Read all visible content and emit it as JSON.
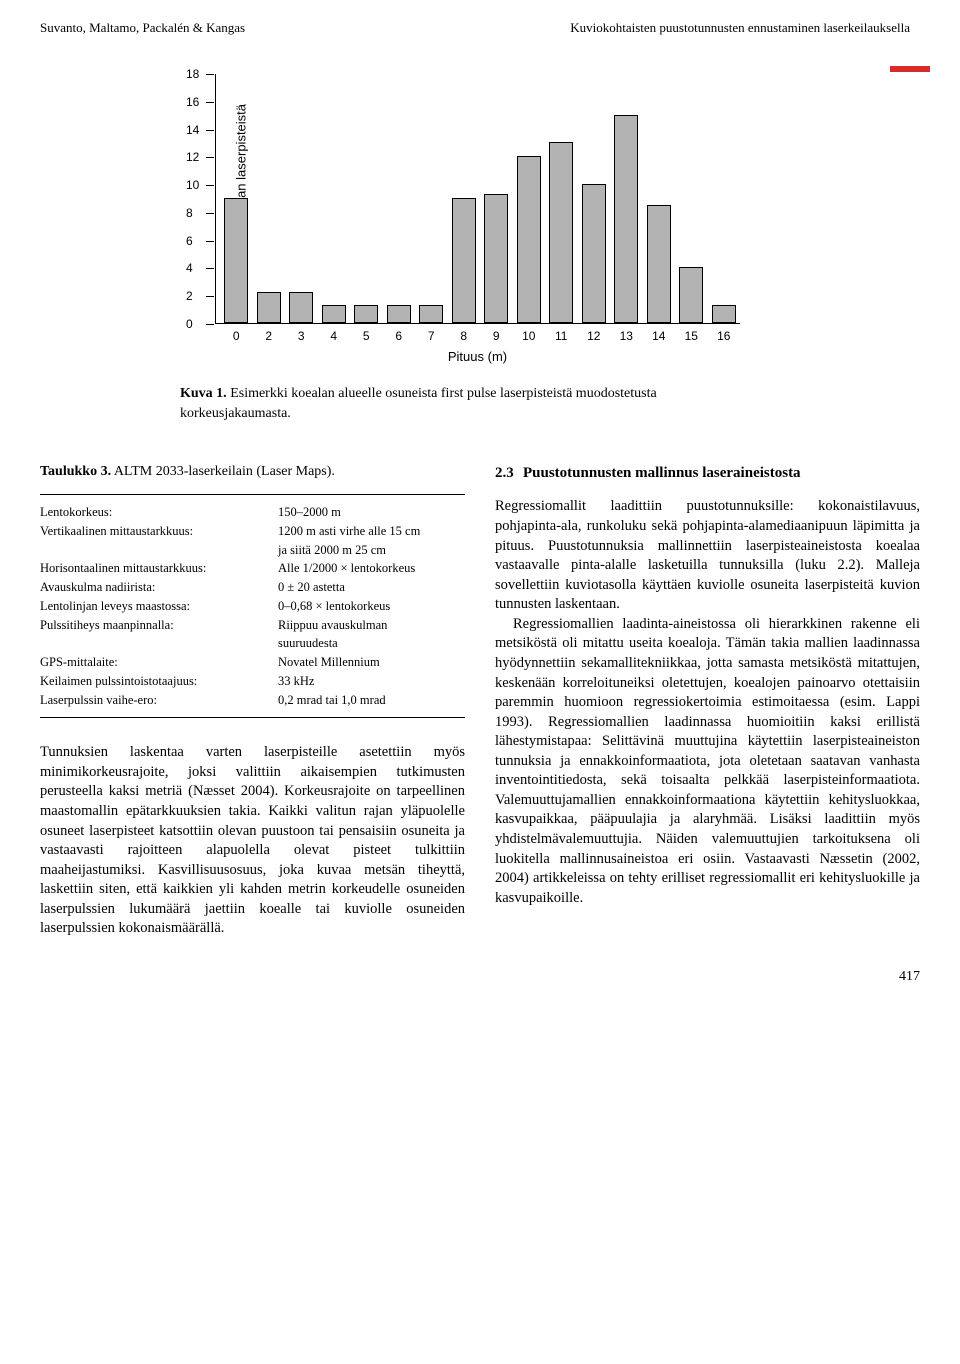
{
  "header": {
    "left": "Suvanto, Maltamo, Packalén & Kangas",
    "right": "Kuviokohtaisten puustotunnusten ennustaminen laserkeilauksella"
  },
  "chart": {
    "type": "bar",
    "ylabel": "Osuus (%) koealan laserpisteistä",
    "xlabel": "Pituus (m)",
    "yticks": [
      0,
      2,
      4,
      6,
      8,
      10,
      12,
      14,
      16,
      18
    ],
    "ylim": [
      0,
      18
    ],
    "xlabels": [
      "0",
      "2",
      "3",
      "4",
      "5",
      "6",
      "7",
      "8",
      "9",
      "10",
      "11",
      "12",
      "13",
      "14",
      "15",
      "16"
    ],
    "values": [
      9,
      2.2,
      2.2,
      1.3,
      1.3,
      1.3,
      1.3,
      9,
      9.3,
      12,
      13,
      10,
      15,
      8.5,
      4,
      1.3
    ],
    "bar_color": "#b3b3b3",
    "border_color": "#000000"
  },
  "caption": {
    "label": "Kuva 1.",
    "text": " Esimerkki koealan alueelle osuneista first pulse laserpisteistä muodostetusta korkeusjakaumasta."
  },
  "table": {
    "title": "Taulukko 3.",
    "title_rest": " ALTM 2033-laserkeilain (Laser Maps).",
    "rows": [
      {
        "k": "Lentokorkeus:",
        "v": "150–2000 m"
      },
      {
        "k": "Vertikaalinen mittaustarkkuus:",
        "v": "1200 m asti virhe alle 15 cm"
      },
      {
        "k": "",
        "v": "ja siitä 2000 m 25 cm"
      },
      {
        "k": "Horisontaalinen mittaustarkkuus:",
        "v": "Alle 1/2000 × lentokorkeus"
      },
      {
        "k": "Avauskulma nadiirista:",
        "v": "0 ± 20 astetta"
      },
      {
        "k": "Lentolinjan leveys maastossa:",
        "v": "0–0,68 × lentokorkeus"
      },
      {
        "k": "Pulssitiheys maanpinnalla:",
        "v": "Riippuu avauskulman"
      },
      {
        "k": "",
        "v": "suuruudesta"
      },
      {
        "k": "GPS-mittalaite:",
        "v": "Novatel Millennium"
      },
      {
        "k": "Keilaimen pulssintoistotaajuus:",
        "v": "33 kHz"
      },
      {
        "k": "Laserpulssin vaihe-ero:",
        "v": "0,2 mrad tai 1,0 mrad"
      }
    ]
  },
  "left_body": "Tunnuksien laskentaa varten laserpisteille asetettiin myös minimikorkeusrajoite, joksi valittiin aikaisempien tutkimusten perusteella kaksi metriä (Næsset 2004). Korkeusrajoite on tarpeellinen maastomallin epätarkkuuksien takia. Kaikki valitun rajan yläpuolelle osuneet laserpisteet katsottiin olevan puustoon tai pensaisiin osuneita ja vastaavasti rajoitteen alapuolella olevat pisteet tulkittiin maaheijastumiksi. Kasvillisuusosuus, joka kuvaa metsän tiheyttä, laskettiin siten, että kaikkien yli kahden metrin korkeudelle osuneiden laserpulssien lukumäärä jaettiin koealle tai kuviolle osuneiden laserpulssien kokonaismäärällä.",
  "section": {
    "num": "2.3",
    "title": "Puustotunnusten mallinnus laseraineistosta"
  },
  "right_body_p1": "Regressiomallit laadittiin puustotunnuksille: kokonaistilavuus, pohjapinta-ala, runkoluku sekä pohjapinta-alamediaanipuun läpimitta ja pituus. Puustotunnuksia mallinnettiin laserpisteaineistosta koealaа vastaavalle pinta-alalle lasketuilla tunnuksilla (luku 2.2). Malleja sovellettiin kuviotasolla käyttäen kuviolle osuneita laserpisteitä kuvion tunnusten laskentaan.",
  "right_body_p2": "Regressiomallien laadinta-aineistossa oli hierarkkinen rakenne eli metsiköstä oli mitattu useita koealoja. Tämän takia mallien laadinnassa hyödynnettiin sekamallitekniikkaa, jotta samasta metsiköstä mitattujen, keskenään korreloituneiksi oletettujen, koealojen painoarvo otettaisiin paremmin huomioon regressiokertoimia estimoitaessa (esim. Lappi 1993). Regressiomallien laadinnassa huomioitiin kaksi erillistä lähestymistapaa: Selittävinä muuttujina käytettiin laserpisteaineiston tunnuksia ja ennakkoinformaatiota, jota oletetaan saatavan vanhasta inventointitiedosta, sekä toisaalta pelkkää laserpisteinformaatiota. Valemuuttujamallien ennakkoinformaationa käytettiin kehitysluokkaa, kasvupaikkaa, pääpuulajia ja alaryhmää. Lisäksi laadittiin myös yhdistelmävalemuuttujia. Näiden valemuuttujien tarkoituksena oli luokitella mallinnusaineistoa eri osiin. Vastaavasti Næssetin (2002, 2004) artikkeleissa on tehty erilliset regressiomallit eri kehitysluokille ja kasvupaikoille.",
  "page": "417"
}
